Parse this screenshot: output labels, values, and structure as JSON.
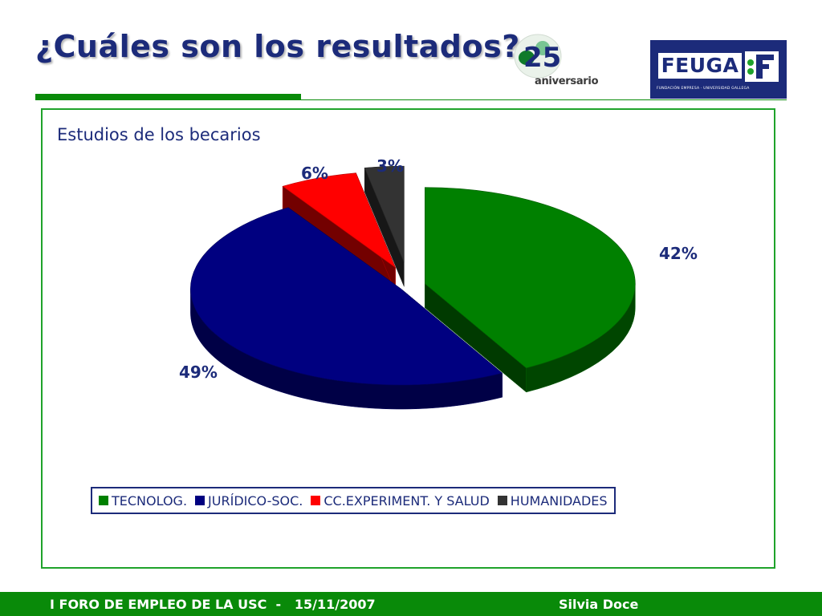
{
  "slide": {
    "title": "¿Cuáles son los resultados?"
  },
  "logos": {
    "anniversary": {
      "number": "25",
      "label": "aniversario"
    },
    "feuga": {
      "name": "FEUGA",
      "tagline": "FUNDACIÓN EMPRESA · UNIVERSIDAD GALLEGA"
    }
  },
  "chart_data": {
    "type": "pie",
    "title": "Estudios de los becarios",
    "slices": [
      {
        "name": "TECNOLOG.",
        "value": 42,
        "label": "42%",
        "color": "#008000"
      },
      {
        "name": "JURÍDICO-SOC.",
        "value": 49,
        "label": "49%",
        "color": "#000080"
      },
      {
        "name": "CC.EXPERIMENT. Y SALUD",
        "value": 6,
        "label": "6%",
        "color": "#ff0000"
      },
      {
        "name": "HUMANIDADES",
        "value": 3,
        "label": "3%",
        "color": "#333333"
      }
    ],
    "exploded": true,
    "style": "3d",
    "legend": "bottom"
  },
  "footer": {
    "left": "I FORO DE EMPLEO DE LA USC  -   15/11/2007",
    "right": "Silvia Doce"
  },
  "colors": {
    "title": "#1c2b7a",
    "accent_green": "#098a09",
    "frame_green": "#1fa32b"
  }
}
